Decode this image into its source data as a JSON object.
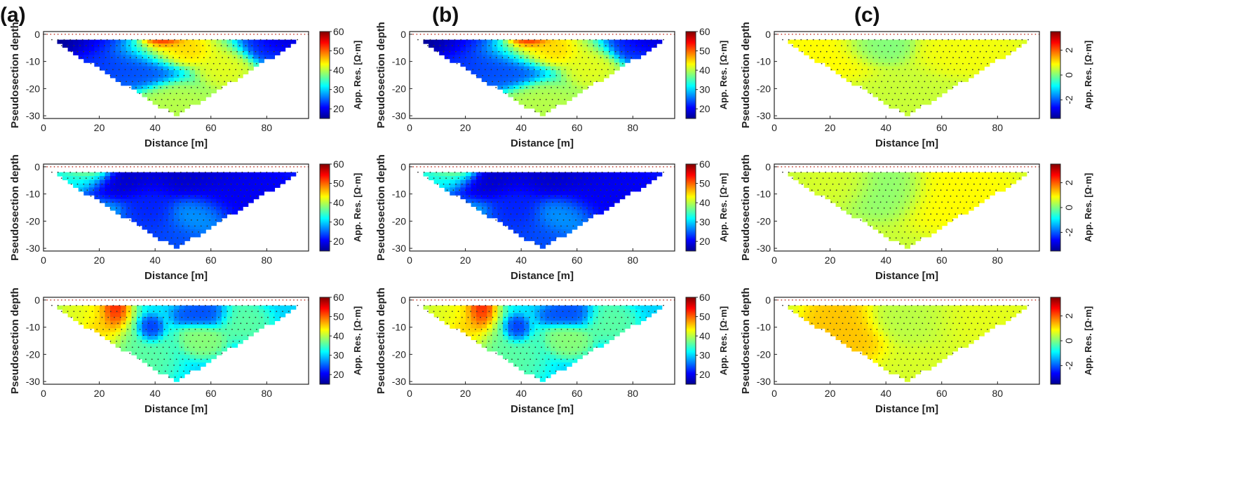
{
  "panel_labels": [
    "(a)",
    "(b)",
    "(c)"
  ],
  "chart_data": [
    {
      "type": "heatmap",
      "panel": "(a)",
      "row": 1,
      "ylabel": "Pseudosection depth",
      "xlabel": "Distance [m]",
      "colorbar_label": "App. Res. [Ω·m]",
      "xlim": [
        0,
        95
      ],
      "ylim": [
        -31,
        1
      ],
      "xticks": [
        0,
        20,
        40,
        60,
        80
      ],
      "yticks": [
        0,
        -10,
        -20,
        -30
      ],
      "clim": [
        15,
        60
      ],
      "cticks": [
        20,
        30,
        40,
        50,
        60
      ],
      "blobs": [
        [
          10,
          -3,
          10,
          4,
          15
        ],
        [
          20,
          -4,
          10,
          8,
          22
        ],
        [
          42,
          -2,
          5,
          2,
          58
        ],
        [
          45,
          -5,
          14,
          4,
          45
        ],
        [
          30,
          -10,
          10,
          6,
          24
        ],
        [
          65,
          -9,
          6,
          7,
          42
        ],
        [
          78,
          -3,
          10,
          4,
          22
        ],
        [
          85,
          -2,
          6,
          3,
          18
        ],
        [
          48,
          -27,
          10,
          5,
          40
        ]
      ],
      "bg": 33
    },
    {
      "type": "heatmap",
      "panel": "(a)",
      "row": 2,
      "ylabel": "Pseudosection depth",
      "xlabel": "Distance [m]",
      "colorbar_label": "App. Res. [Ω·m]",
      "xlim": [
        0,
        95
      ],
      "ylim": [
        -31,
        1
      ],
      "xticks": [
        0,
        20,
        40,
        60,
        80
      ],
      "yticks": [
        0,
        -10,
        -20,
        -30
      ],
      "clim": [
        15,
        60
      ],
      "cticks": [
        20,
        30,
        40,
        50,
        60
      ],
      "blobs": [
        [
          45,
          -4,
          20,
          5,
          18
        ],
        [
          40,
          -15,
          6,
          10,
          22
        ],
        [
          70,
          -10,
          15,
          8,
          20
        ],
        [
          55,
          -18,
          8,
          5,
          28
        ],
        [
          45,
          -26,
          10,
          6,
          24
        ],
        [
          15,
          -2,
          6,
          2,
          40
        ],
        [
          10,
          -4,
          8,
          3,
          33
        ]
      ],
      "bg": 29
    },
    {
      "type": "heatmap",
      "panel": "(a)",
      "row": 3,
      "ylabel": "Pseudosection depth",
      "xlabel": "Distance [m]",
      "colorbar_label": "App. Res. [Ω·m]",
      "xlim": [
        0,
        95
      ],
      "ylim": [
        -31,
        1
      ],
      "xticks": [
        0,
        20,
        40,
        60,
        80
      ],
      "yticks": [
        0,
        -10,
        -20,
        -30
      ],
      "clim": [
        15,
        60
      ],
      "cticks": [
        20,
        30,
        40,
        50,
        60
      ],
      "blobs": [
        [
          25,
          -4,
          3,
          5,
          56
        ],
        [
          22,
          -10,
          6,
          10,
          46
        ],
        [
          14,
          -5,
          6,
          4,
          42
        ],
        [
          38,
          -11,
          3,
          3,
          22
        ],
        [
          58,
          -6,
          6,
          3,
          24
        ],
        [
          57,
          -14,
          5,
          4,
          38
        ],
        [
          70,
          -8,
          6,
          4,
          36
        ],
        [
          30,
          -20,
          10,
          8,
          36
        ]
      ],
      "bg": 30
    },
    {
      "type": "heatmap",
      "panel": "(b)",
      "row": 1,
      "ylabel": "Pseudosection depth",
      "xlabel": "Distance [m]",
      "colorbar_label": "App. Res. [Ω·m]",
      "xlim": [
        0,
        95
      ],
      "ylim": [
        -31,
        1
      ],
      "xticks": [
        0,
        20,
        40,
        60,
        80
      ],
      "yticks": [
        0,
        -10,
        -20,
        -30
      ],
      "clim": [
        15,
        60
      ],
      "cticks": [
        20,
        30,
        40,
        50,
        60
      ],
      "blobs": [
        [
          10,
          -3,
          10,
          4,
          15
        ],
        [
          20,
          -4,
          10,
          8,
          22
        ],
        [
          42,
          -2,
          5,
          2,
          58
        ],
        [
          45,
          -5,
          14,
          4,
          45
        ],
        [
          30,
          -10,
          10,
          6,
          24
        ],
        [
          65,
          -9,
          6,
          7,
          42
        ],
        [
          78,
          -3,
          10,
          4,
          22
        ],
        [
          85,
          -2,
          6,
          3,
          18
        ],
        [
          48,
          -27,
          10,
          5,
          40
        ]
      ],
      "bg": 33
    },
    {
      "type": "heatmap",
      "panel": "(b)",
      "row": 2,
      "ylabel": "Pseudosection depth",
      "xlabel": "Distance [m]",
      "colorbar_label": "App. Res. [Ω·m]",
      "xlim": [
        0,
        95
      ],
      "ylim": [
        -31,
        1
      ],
      "xticks": [
        0,
        20,
        40,
        60,
        80
      ],
      "yticks": [
        0,
        -10,
        -20,
        -30
      ],
      "clim": [
        15,
        60
      ],
      "cticks": [
        20,
        30,
        40,
        50,
        60
      ],
      "blobs": [
        [
          45,
          -4,
          20,
          5,
          18
        ],
        [
          40,
          -15,
          6,
          10,
          22
        ],
        [
          70,
          -10,
          15,
          8,
          20
        ],
        [
          55,
          -18,
          8,
          5,
          28
        ],
        [
          45,
          -26,
          10,
          6,
          24
        ],
        [
          15,
          -2,
          6,
          2,
          40
        ],
        [
          10,
          -4,
          8,
          3,
          33
        ]
      ],
      "bg": 29
    },
    {
      "type": "heatmap",
      "panel": "(b)",
      "row": 3,
      "ylabel": "Pseudosection depth",
      "xlabel": "Distance [m]",
      "colorbar_label": "App. Res. [Ω·m]",
      "xlim": [
        0,
        95
      ],
      "ylim": [
        -31,
        1
      ],
      "xticks": [
        0,
        20,
        40,
        60,
        80
      ],
      "yticks": [
        0,
        -10,
        -20,
        -30
      ],
      "clim": [
        15,
        60
      ],
      "cticks": [
        20,
        30,
        40,
        50,
        60
      ],
      "blobs": [
        [
          25,
          -4,
          3,
          5,
          56
        ],
        [
          22,
          -10,
          6,
          10,
          46
        ],
        [
          14,
          -5,
          6,
          4,
          42
        ],
        [
          38,
          -11,
          3,
          3,
          22
        ],
        [
          58,
          -6,
          6,
          3,
          24
        ],
        [
          57,
          -14,
          5,
          4,
          38
        ],
        [
          70,
          -8,
          6,
          4,
          36
        ],
        [
          30,
          -20,
          10,
          8,
          36
        ]
      ],
      "bg": 30
    },
    {
      "type": "heatmap",
      "panel": "(c)",
      "row": 1,
      "ylabel": "Pseudosection depth",
      "xlabel": "Distance [m]",
      "colorbar_label": "App. Res. [Ω·m]",
      "xlim": [
        0,
        95
      ],
      "ylim": [
        -31,
        1
      ],
      "xticks": [
        0,
        20,
        40,
        60,
        80
      ],
      "yticks": [
        0,
        -10,
        -20,
        -30
      ],
      "clim": [
        -3.5,
        3.5
      ],
      "cticks": [
        2,
        0,
        -2
      ],
      "blobs": [
        [
          20,
          -6,
          10,
          6,
          0.9
        ],
        [
          35,
          -4,
          8,
          4,
          0.0
        ],
        [
          70,
          -6,
          10,
          5,
          0.8
        ]
      ],
      "bg": 0.5
    },
    {
      "type": "heatmap",
      "panel": "(c)",
      "row": 2,
      "ylabel": "Pseudosection depth",
      "xlabel": "Distance [m]",
      "colorbar_label": "App. Res. [Ω·m]",
      "xlim": [
        0,
        95
      ],
      "ylim": [
        -31,
        1
      ],
      "xticks": [
        0,
        20,
        40,
        60,
        80
      ],
      "yticks": [
        0,
        -10,
        -20,
        -30
      ],
      "clim": [
        -3.5,
        3.5
      ],
      "cticks": [
        2,
        0,
        -2
      ],
      "blobs": [
        [
          40,
          -8,
          10,
          6,
          0.1
        ],
        [
          65,
          -10,
          12,
          8,
          0.9
        ],
        [
          25,
          -6,
          8,
          5,
          0.6
        ]
      ],
      "bg": 0.5
    },
    {
      "type": "heatmap",
      "panel": "(c)",
      "row": 3,
      "ylabel": "Pseudosection depth",
      "xlabel": "Distance [m]",
      "colorbar_label": "App. Res. [Ω·m]",
      "xlim": [
        0,
        95
      ],
      "ylim": [
        -31,
        1
      ],
      "xticks": [
        0,
        20,
        40,
        60,
        80
      ],
      "yticks": [
        0,
        -10,
        -20,
        -30
      ],
      "clim": [
        -3.5,
        3.5
      ],
      "cticks": [
        2,
        0,
        -2
      ],
      "blobs": [
        [
          25,
          -10,
          8,
          8,
          1.3
        ],
        [
          50,
          -6,
          12,
          5,
          0.4
        ],
        [
          70,
          -6,
          10,
          5,
          0.7
        ]
      ],
      "bg": 0.6
    }
  ]
}
